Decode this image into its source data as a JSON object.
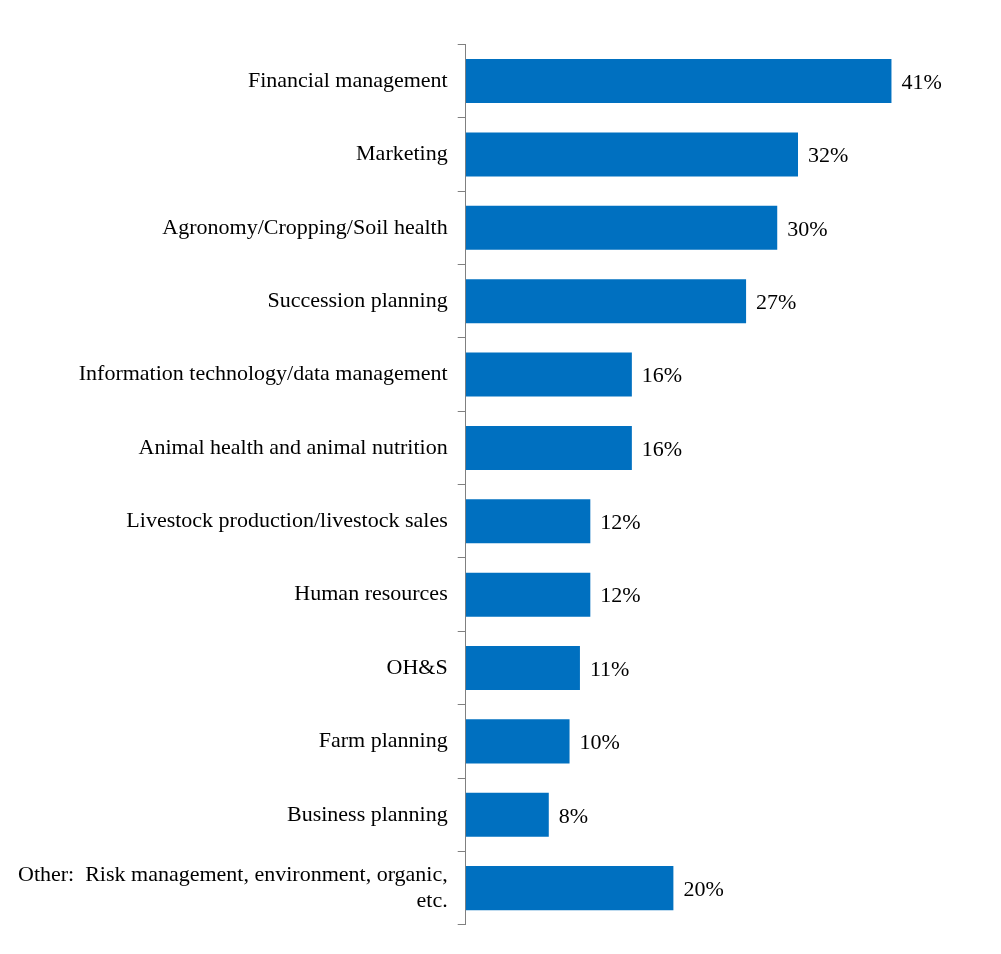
{
  "chart_data": {
    "type": "bar",
    "orientation": "horizontal",
    "categories": [
      "Financial management",
      "Marketing",
      "Agronomy/Cropping/Soil health",
      "Succession planning",
      "Information technology/data management",
      "Animal health and animal nutrition",
      "Livestock production/livestock sales",
      "Human resources",
      "OH&S",
      "Farm planning",
      "Business planning",
      "Other:  Risk management, environment, organic, etc."
    ],
    "values": [
      41,
      32,
      30,
      27,
      16,
      16,
      12,
      12,
      11,
      10,
      8,
      20
    ],
    "value_labels": [
      "41%",
      "32%",
      "30%",
      "27%",
      "16%",
      "16%",
      "12%",
      "12%",
      "11%",
      "10%",
      "8%",
      "20%"
    ],
    "color": "#0070c0",
    "legend": false,
    "tick_labels": "y"
  }
}
